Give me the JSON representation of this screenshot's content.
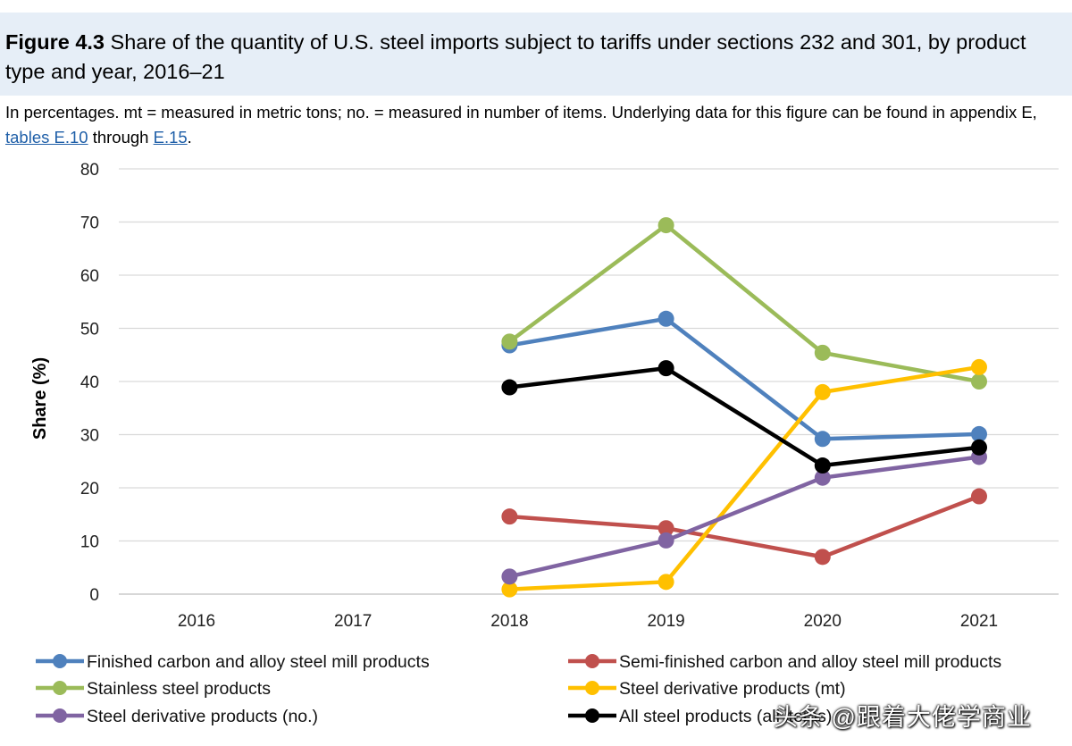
{
  "header": {
    "figure_label": "Figure 4.3",
    "title": "Share of the quantity of U.S. steel imports subject to tariffs under sections 232 and 301, by product type and year, 2016–21"
  },
  "subtitle": {
    "text_before": "In percentages. mt = measured in metric tons; no. = measured in number of items. Underlying data for this figure can be found in appendix E, ",
    "link1": "tables E.10",
    "text_middle": " through ",
    "link2": "E.15",
    "text_after": "."
  },
  "watermark": "头条 @跟着大佬学商业",
  "chart_data": {
    "type": "line",
    "title": "Share of the quantity of U.S. steel imports subject to tariffs under sections 232 and 301, by product type and year, 2016–21",
    "xlabel": "",
    "ylabel": "Share (%)",
    "categories": [
      "2016",
      "2017",
      "2018",
      "2019",
      "2020",
      "2021"
    ],
    "ylim": [
      0,
      80
    ],
    "yticks": [
      0,
      10,
      20,
      30,
      40,
      50,
      60,
      70,
      80
    ],
    "grid": true,
    "legend_position": "bottom",
    "series": [
      {
        "name": "Finished carbon and alloy steel mill products",
        "color": "#4f81bd",
        "values": [
          null,
          null,
          46.8,
          51.8,
          29.2,
          30.1
        ]
      },
      {
        "name": "Semi-finished carbon and alloy steel mill products",
        "color": "#c0504d",
        "values": [
          null,
          null,
          14.6,
          12.4,
          7.0,
          18.4
        ]
      },
      {
        "name": "Stainless steel products",
        "color": "#9bbb59",
        "values": [
          null,
          null,
          47.5,
          69.4,
          45.4,
          40.0
        ]
      },
      {
        "name": "Steel derivative products (mt)",
        "color": "#ffc000",
        "values": [
          null,
          null,
          0.9,
          2.3,
          38.0,
          42.7
        ]
      },
      {
        "name": "Steel derivative products (no.)",
        "color": "#8064a2",
        "values": [
          null,
          null,
          3.3,
          10.1,
          21.9,
          25.8
        ]
      },
      {
        "name": "All steel products (all items)",
        "color": "#000000",
        "values": [
          null,
          null,
          38.9,
          42.5,
          24.2,
          27.6
        ]
      }
    ]
  }
}
